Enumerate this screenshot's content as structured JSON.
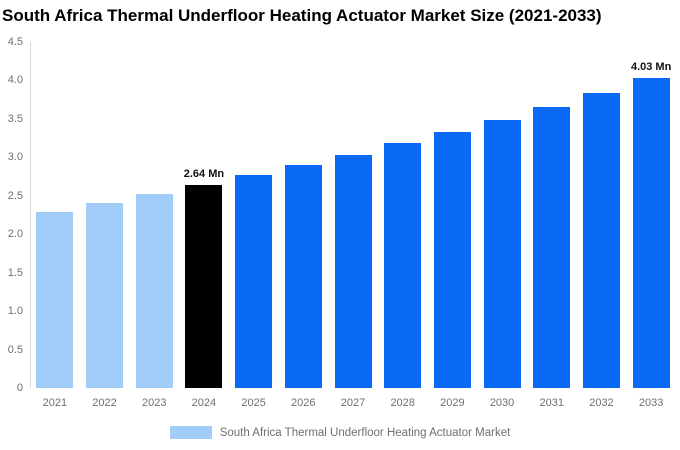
{
  "title": "South Africa Thermal Underfloor Heating Actuator Market Size (2021-2033)",
  "colors": {
    "light_blue_bar": "#A1CDF8",
    "highlight_black_bar": "#000000",
    "blue_bar": "#0A6AF5",
    "axis_line": "#d8d8d8",
    "tick_text": "#6f6f6f",
    "title_text": "#000000"
  },
  "chart_data": {
    "type": "bar",
    "title": "South Africa Thermal Underfloor Heating Actuator Market Size (2021-2033)",
    "categories": [
      "2021",
      "2022",
      "2023",
      "2024",
      "2025",
      "2026",
      "2027",
      "2028",
      "2029",
      "2030",
      "2031",
      "2032",
      "2033"
    ],
    "values": [
      2.29,
      2.4,
      2.52,
      2.64,
      2.77,
      2.9,
      3.03,
      3.18,
      3.33,
      3.49,
      3.66,
      3.84,
      4.03
    ],
    "values_unit": "Mn",
    "bar_colors": [
      "#A1CDF8",
      "#A1CDF8",
      "#A1CDF8",
      "#000000",
      "#0A6AF5",
      "#0A6AF5",
      "#0A6AF5",
      "#0A6AF5",
      "#0A6AF5",
      "#0A6AF5",
      "#0A6AF5",
      "#0A6AF5",
      "#0A6AF5"
    ],
    "data_labels": [
      {
        "category": "2024",
        "text": "2.64 Mn"
      },
      {
        "category": "2033",
        "text": "4.03 Mn"
      }
    ],
    "xlabel": "",
    "ylabel": "",
    "ylim": [
      0,
      4.5
    ],
    "yticks": [
      "0",
      "0.5",
      "1.0",
      "1.5",
      "2.0",
      "2.5",
      "3.0",
      "3.5",
      "4.0",
      "4.5"
    ],
    "grid": false,
    "legend": {
      "position": "bottom",
      "items": [
        {
          "label": "South Africa Thermal Underfloor Heating Actuator Market",
          "color": "#A1CDF8"
        }
      ]
    }
  }
}
